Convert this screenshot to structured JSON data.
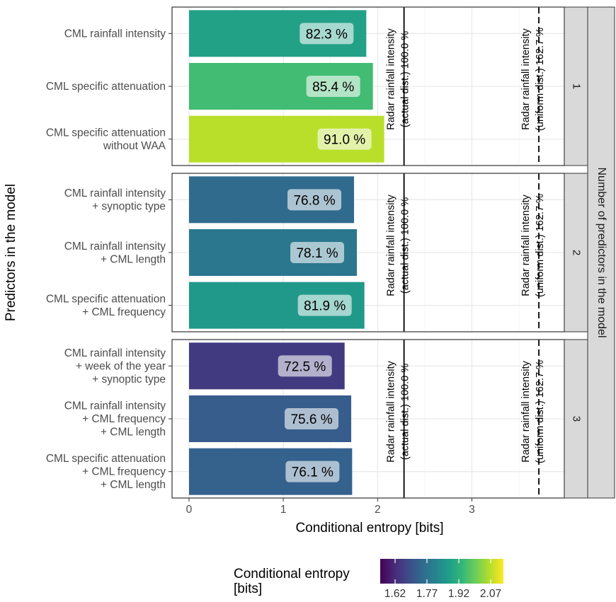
{
  "chart_data": {
    "type": "bar",
    "orientation": "horizontal",
    "xlabel": "Conditional entropy [bits]",
    "ylabel": "Predictors in the model",
    "facet_strip_title": "Number of predictors in the model",
    "xlim": [
      -0.18,
      3.98
    ],
    "xticks": [
      "0",
      "1",
      "2",
      "3"
    ],
    "grid": true,
    "legend": {
      "title_lines": [
        "Conditional entropy",
        "[bits]"
      ],
      "ticks": [
        "1.62",
        "1.77",
        "1.92",
        "2.07"
      ],
      "min": 1.55,
      "max": 2.13,
      "colormap": "viridis",
      "placement": "bottom"
    },
    "reference_lines": [
      {
        "value": 2.28,
        "style": "solid",
        "label_lines": [
          "Radar rainfall intensity",
          "(actual dist.) 100.0 %"
        ]
      },
      {
        "value": 3.71,
        "style": "dashed",
        "label_lines": [
          "Radar rainfall intensity",
          "(uniform dist.) 162.7 %"
        ]
      }
    ],
    "panels": [
      {
        "strip": "1",
        "bars": [
          {
            "label_lines": [
              "CML rainfall intensity"
            ],
            "value": 1.88,
            "label": "82.3 %"
          },
          {
            "label_lines": [
              "CML specific attenuation"
            ],
            "value": 1.95,
            "label": "85.4 %"
          },
          {
            "label_lines": [
              "CML specific attenuation",
              "without WAA"
            ],
            "value": 2.07,
            "label": "91.0 %"
          }
        ]
      },
      {
        "strip": "2",
        "bars": [
          {
            "label_lines": [
              "CML rainfall intensity",
              "+ synoptic type"
            ],
            "value": 1.75,
            "label": "76.8 %"
          },
          {
            "label_lines": [
              "CML rainfall intensity",
              "+ CML length"
            ],
            "value": 1.78,
            "label": "78.1 %"
          },
          {
            "label_lines": [
              "CML specific attenuation",
              "+ CML frequency"
            ],
            "value": 1.86,
            "label": "81.9 %"
          }
        ]
      },
      {
        "strip": "3",
        "bars": [
          {
            "label_lines": [
              "CML rainfall intensity",
              "+ week of the year",
              "+ synoptic type"
            ],
            "value": 1.65,
            "label": "72.5 %"
          },
          {
            "label_lines": [
              "CML rainfall intensity",
              "+ CML frequency",
              "+ CML length"
            ],
            "value": 1.72,
            "label": "75.6 %"
          },
          {
            "label_lines": [
              "CML specific attenuation",
              "+ CML frequency",
              "+ CML length"
            ],
            "value": 1.73,
            "label": "76.1 %"
          }
        ]
      }
    ]
  }
}
